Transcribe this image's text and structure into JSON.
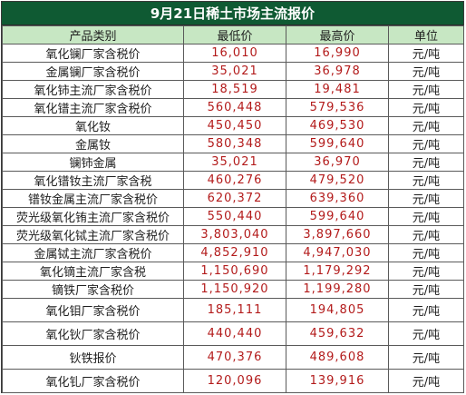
{
  "title": "9月21日稀土市场主流报价",
  "headers": [
    "产品类别",
    "最低价",
    "最高价",
    "单位"
  ],
  "rows": [
    {
      "name": "氧化镧厂家含税价",
      "low": "16,010",
      "high": "16,990",
      "unit": "元/吨"
    },
    {
      "name": "金属镧厂家含税价",
      "low": "35,021",
      "high": "36,978",
      "unit": "元/吨"
    },
    {
      "name": "氧化铈主流厂家含税价",
      "low": "18,519",
      "high": "19,481",
      "unit": "元/吨"
    },
    {
      "name": "氧化镨主流厂家含税价",
      "low": "560,448",
      "high": "579,536",
      "unit": "元/吨"
    },
    {
      "name": "氧化钕",
      "low": "450,450",
      "high": "469,530",
      "unit": "元/吨"
    },
    {
      "name": "金属钕",
      "low": "580,348",
      "high": "599,640",
      "unit": "元/吨"
    },
    {
      "name": "镧铈金属",
      "low": "35,021",
      "high": "36,970",
      "unit": "元/吨"
    },
    {
      "name": "氧化镨钕主流厂家含税",
      "low": "460,276",
      "high": "479,520",
      "unit": "元/吨"
    },
    {
      "name": "镨钕金属主流厂家含税价",
      "low": "620,372",
      "high": "639,360",
      "unit": "元/吨"
    },
    {
      "name": "荧光级氧化铕主流厂家含税价",
      "low": "550,440",
      "high": "599,640",
      "unit": "元/吨"
    },
    {
      "name": "荧光级氧化铽主流厂家含税价",
      "low": "3,803,040",
      "high": "3,897,660",
      "unit": "元/吨"
    },
    {
      "name": "金属铽主流厂家含税价",
      "low": "4,852,910",
      "high": "4,947,030",
      "unit": "元/吨"
    },
    {
      "name": "氧化镝主流厂家含税",
      "low": "1,150,690",
      "high": "1,179,292",
      "unit": "元/吨"
    },
    {
      "name": "镝铁厂家含税价",
      "low": "1,150,920",
      "high": "1,199,280",
      "unit": "元/吨"
    },
    {
      "name": "氧化钼厂家含税价",
      "low": "185,111",
      "high": "194,805",
      "unit": "元/吨"
    },
    {
      "name": "氧化钬厂家含税价",
      "low": "440,440",
      "high": "459,632",
      "unit": "元/吨"
    },
    {
      "name": "钬铁报价",
      "low": "470,376",
      "high": "489,608",
      "unit": "元/吨"
    },
    {
      "name": "氧化钆厂家含税价",
      "low": "120,096",
      "high": "139,916",
      "unit": "元/吨"
    }
  ]
}
